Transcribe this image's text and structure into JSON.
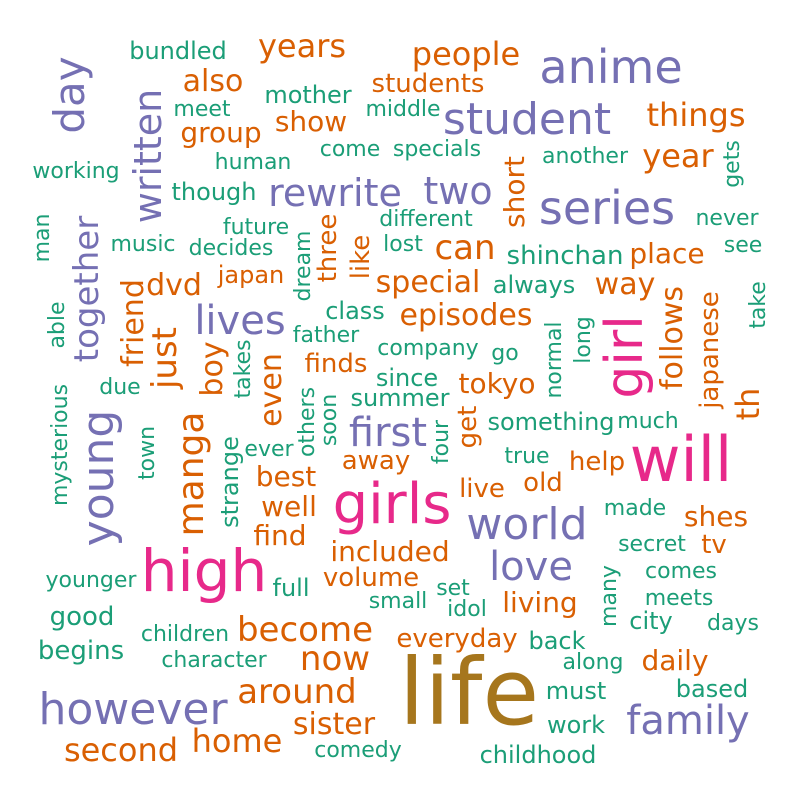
{
  "colors": {
    "teal": "#1b9e77",
    "orange": "#d95f02",
    "purple": "#7570b3",
    "pink": "#e7298a",
    "gold": "#a6761d"
  },
  "words": [
    {
      "text": "life",
      "color_group": "gold"
    },
    {
      "text": "high",
      "color_group": "pink"
    },
    {
      "text": "girls",
      "color_group": "pink"
    },
    {
      "text": "will",
      "color_group": "pink"
    },
    {
      "text": "girl",
      "color_group": "pink"
    },
    {
      "text": "anime",
      "color_group": "purple"
    },
    {
      "text": "series",
      "color_group": "purple"
    },
    {
      "text": "student",
      "color_group": "purple"
    },
    {
      "text": "young",
      "color_group": "purple"
    },
    {
      "text": "world",
      "color_group": "purple"
    },
    {
      "text": "however",
      "color_group": "purple"
    },
    {
      "text": "family",
      "color_group": "purple"
    },
    {
      "text": "love",
      "color_group": "purple"
    },
    {
      "text": "first",
      "color_group": "purple"
    },
    {
      "text": "lives",
      "color_group": "purple"
    },
    {
      "text": "rewrite",
      "color_group": "purple"
    },
    {
      "text": "two",
      "color_group": "purple"
    },
    {
      "text": "day",
      "color_group": "purple"
    },
    {
      "text": "written",
      "color_group": "purple"
    },
    {
      "text": "together",
      "color_group": "purple"
    },
    {
      "text": "manga",
      "color_group": "orange"
    },
    {
      "text": "years",
      "color_group": "orange"
    },
    {
      "text": "people",
      "color_group": "orange"
    },
    {
      "text": "also",
      "color_group": "orange"
    },
    {
      "text": "students",
      "color_group": "orange"
    },
    {
      "text": "things",
      "color_group": "orange"
    },
    {
      "text": "group",
      "color_group": "orange"
    },
    {
      "text": "show",
      "color_group": "orange"
    },
    {
      "text": "year",
      "color_group": "orange"
    },
    {
      "text": "short",
      "color_group": "orange"
    },
    {
      "text": "can",
      "color_group": "orange"
    },
    {
      "text": "place",
      "color_group": "orange"
    },
    {
      "text": "way",
      "color_group": "orange"
    },
    {
      "text": "three",
      "color_group": "orange"
    },
    {
      "text": "like",
      "color_group": "orange"
    },
    {
      "text": "special",
      "color_group": "orange"
    },
    {
      "text": "episodes",
      "color_group": "orange"
    },
    {
      "text": "dvd",
      "color_group": "orange"
    },
    {
      "text": "japan",
      "color_group": "orange"
    },
    {
      "text": "friend",
      "color_group": "orange"
    },
    {
      "text": "just",
      "color_group": "orange"
    },
    {
      "text": "boy",
      "color_group": "orange"
    },
    {
      "text": "even",
      "color_group": "orange"
    },
    {
      "text": "finds",
      "color_group": "orange"
    },
    {
      "text": "tokyo",
      "color_group": "orange"
    },
    {
      "text": "follows",
      "color_group": "orange"
    },
    {
      "text": "japanese",
      "color_group": "orange"
    },
    {
      "text": "th",
      "color_group": "orange"
    },
    {
      "text": "get",
      "color_group": "orange"
    },
    {
      "text": "away",
      "color_group": "orange"
    },
    {
      "text": "best",
      "color_group": "orange"
    },
    {
      "text": "well",
      "color_group": "orange"
    },
    {
      "text": "find",
      "color_group": "orange"
    },
    {
      "text": "live",
      "color_group": "orange"
    },
    {
      "text": "old",
      "color_group": "orange"
    },
    {
      "text": "help",
      "color_group": "orange"
    },
    {
      "text": "shes",
      "color_group": "orange"
    },
    {
      "text": "tv",
      "color_group": "orange"
    },
    {
      "text": "included",
      "color_group": "orange"
    },
    {
      "text": "volume",
      "color_group": "orange"
    },
    {
      "text": "living",
      "color_group": "orange"
    },
    {
      "text": "become",
      "color_group": "orange"
    },
    {
      "text": "now",
      "color_group": "orange"
    },
    {
      "text": "everyday",
      "color_group": "orange"
    },
    {
      "text": "daily",
      "color_group": "orange"
    },
    {
      "text": "around",
      "color_group": "orange"
    },
    {
      "text": "sister",
      "color_group": "orange"
    },
    {
      "text": "second",
      "color_group": "orange"
    },
    {
      "text": "home",
      "color_group": "orange"
    },
    {
      "text": "bundled",
      "color_group": "teal"
    },
    {
      "text": "mother",
      "color_group": "teal"
    },
    {
      "text": "meet",
      "color_group": "teal"
    },
    {
      "text": "middle",
      "color_group": "teal"
    },
    {
      "text": "human",
      "color_group": "teal"
    },
    {
      "text": "come",
      "color_group": "teal"
    },
    {
      "text": "specials",
      "color_group": "teal"
    },
    {
      "text": "another",
      "color_group": "teal"
    },
    {
      "text": "gets",
      "color_group": "teal"
    },
    {
      "text": "working",
      "color_group": "teal"
    },
    {
      "text": "though",
      "color_group": "teal"
    },
    {
      "text": "future",
      "color_group": "teal"
    },
    {
      "text": "different",
      "color_group": "teal"
    },
    {
      "text": "never",
      "color_group": "teal"
    },
    {
      "text": "man",
      "color_group": "teal"
    },
    {
      "text": "music",
      "color_group": "teal"
    },
    {
      "text": "decides",
      "color_group": "teal"
    },
    {
      "text": "dream",
      "color_group": "teal"
    },
    {
      "text": "lost",
      "color_group": "teal"
    },
    {
      "text": "shinchan",
      "color_group": "teal"
    },
    {
      "text": "see",
      "color_group": "teal"
    },
    {
      "text": "always",
      "color_group": "teal"
    },
    {
      "text": "take",
      "color_group": "teal"
    },
    {
      "text": "able",
      "color_group": "teal"
    },
    {
      "text": "class",
      "color_group": "teal"
    },
    {
      "text": "father",
      "color_group": "teal"
    },
    {
      "text": "takes",
      "color_group": "teal"
    },
    {
      "text": "company",
      "color_group": "teal"
    },
    {
      "text": "go",
      "color_group": "teal"
    },
    {
      "text": "normal",
      "color_group": "teal"
    },
    {
      "text": "long",
      "color_group": "teal"
    },
    {
      "text": "due",
      "color_group": "teal"
    },
    {
      "text": "others",
      "color_group": "teal"
    },
    {
      "text": "since",
      "color_group": "teal"
    },
    {
      "text": "mysterious",
      "color_group": "teal"
    },
    {
      "text": "soon",
      "color_group": "teal"
    },
    {
      "text": "summer",
      "color_group": "teal"
    },
    {
      "text": "something",
      "color_group": "teal"
    },
    {
      "text": "much",
      "color_group": "teal"
    },
    {
      "text": "town",
      "color_group": "teal"
    },
    {
      "text": "strange",
      "color_group": "teal"
    },
    {
      "text": "ever",
      "color_group": "teal"
    },
    {
      "text": "four",
      "color_group": "teal"
    },
    {
      "text": "true",
      "color_group": "teal"
    },
    {
      "text": "made",
      "color_group": "teal"
    },
    {
      "text": "secret",
      "color_group": "teal"
    },
    {
      "text": "younger",
      "color_group": "teal"
    },
    {
      "text": "full",
      "color_group": "teal"
    },
    {
      "text": "comes",
      "color_group": "teal"
    },
    {
      "text": "set",
      "color_group": "teal"
    },
    {
      "text": "many",
      "color_group": "teal"
    },
    {
      "text": "good",
      "color_group": "teal"
    },
    {
      "text": "small",
      "color_group": "teal"
    },
    {
      "text": "idol",
      "color_group": "teal"
    },
    {
      "text": "meets",
      "color_group": "teal"
    },
    {
      "text": "city",
      "color_group": "teal"
    },
    {
      "text": "days",
      "color_group": "teal"
    },
    {
      "text": "children",
      "color_group": "teal"
    },
    {
      "text": "begins",
      "color_group": "teal"
    },
    {
      "text": "character",
      "color_group": "teal"
    },
    {
      "text": "back",
      "color_group": "teal"
    },
    {
      "text": "along",
      "color_group": "teal"
    },
    {
      "text": "must",
      "color_group": "teal"
    },
    {
      "text": "based",
      "color_group": "teal"
    },
    {
      "text": "work",
      "color_group": "teal"
    },
    {
      "text": "comedy",
      "color_group": "teal"
    },
    {
      "text": "childhood",
      "color_group": "teal"
    }
  ]
}
